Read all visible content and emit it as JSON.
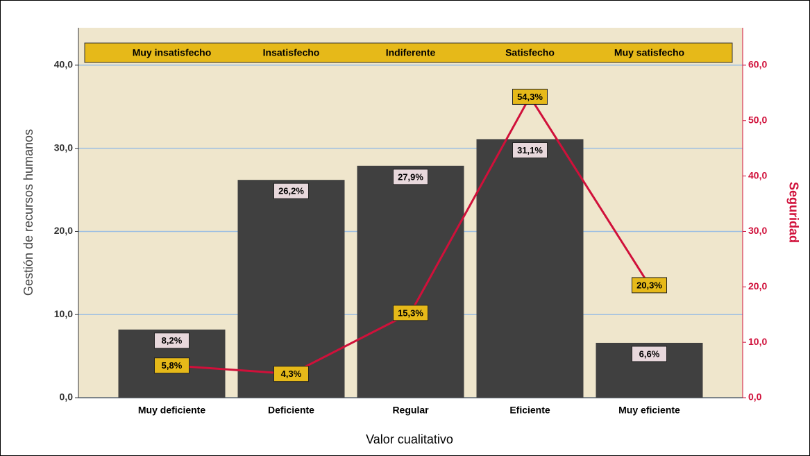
{
  "chart_data": {
    "type": "bar-line",
    "x_label": "Valor cualitativo",
    "y_label": "Gestión de recursos humanos",
    "y2_label": "Seguridad",
    "categories": [
      "Muy deficiente",
      "Deficiente",
      "Regular",
      "Eficiente",
      "Muy eficiente"
    ],
    "top_categories": [
      "Muy insatisfecho",
      "Insatisfecho",
      "Indiferente",
      "Satisfecho",
      "Muy satisfecho"
    ],
    "series": [
      {
        "name": "Gestión de recursos humanos",
        "type": "bar",
        "color": "#404040",
        "values": [
          8.2,
          26.2,
          27.9,
          31.1,
          6.6
        ],
        "value_labels": [
          "8,2%",
          "26,2%",
          "27,9%",
          "31,1%",
          "6,6%"
        ]
      },
      {
        "name": "Seguridad",
        "type": "line",
        "axis": "y2",
        "color": "#d0103a",
        "values": [
          5.8,
          4.3,
          15.3,
          54.3,
          20.3
        ],
        "value_labels": [
          "5,8%",
          "4,3%",
          "15,3%",
          "54,3%",
          "20,3%"
        ]
      }
    ],
    "ylim": [
      0,
      44.5
    ],
    "yticks": [
      {
        "value": 0,
        "label": "0,0"
      },
      {
        "value": 10,
        "label": "10,0"
      },
      {
        "value": 20,
        "label": "20,0"
      },
      {
        "value": 30,
        "label": "30,0"
      },
      {
        "value": 40,
        "label": "40,0"
      }
    ],
    "y2lim": [
      0,
      66.75
    ],
    "y2ticks": [
      {
        "value": 0,
        "label": "0,0"
      },
      {
        "value": 10,
        "label": "10,0"
      },
      {
        "value": 20,
        "label": "20,0"
      },
      {
        "value": 30,
        "label": "30,0"
      },
      {
        "value": 40,
        "label": "40,0"
      },
      {
        "value": 50,
        "label": "50,0"
      },
      {
        "value": 60,
        "label": "60,0"
      }
    ],
    "grid": true
  }
}
